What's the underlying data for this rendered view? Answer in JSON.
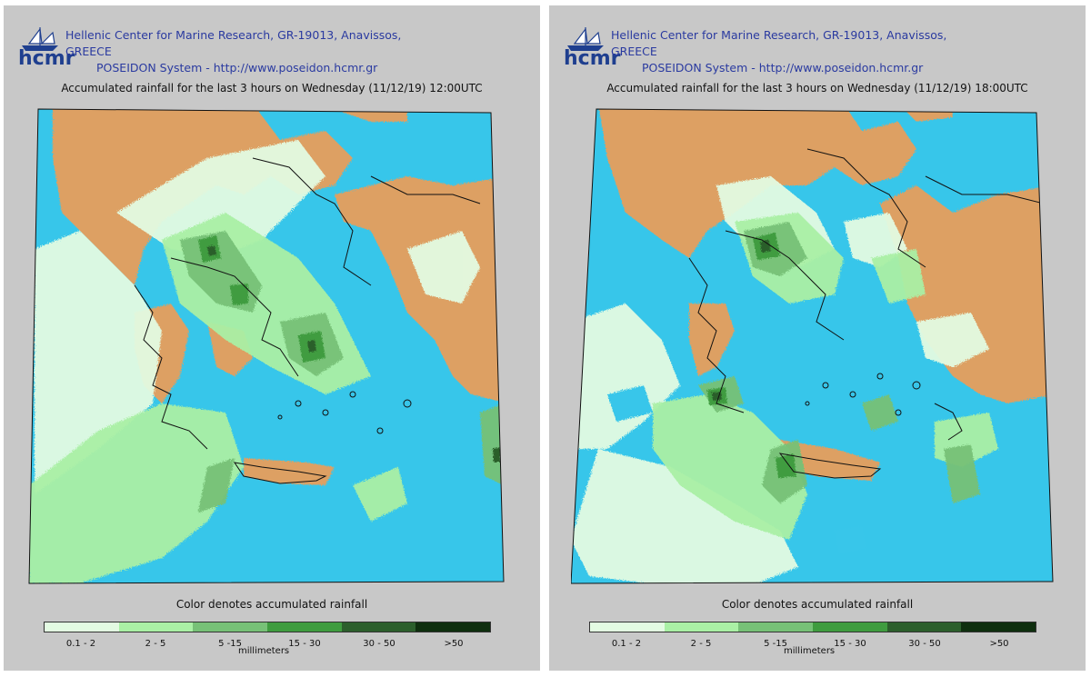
{
  "org": {
    "logo_text": "hcmr",
    "line1": "Hellenic Center for Marine Research, GR-19013, Anavissos, GREECE",
    "line2": "POSEIDON System - http://www.poseidon.hcmr.gr"
  },
  "panels": [
    {
      "title": "Accumulated rainfall for the last 3 hours on Wednesday (11/12/19) 12:00UTC"
    },
    {
      "title": "Accumulated rainfall for the last 3 hours on Wednesday (11/12/19) 18:00UTC"
    }
  ],
  "legend": {
    "title": "Color denotes accumulated rainfall",
    "unit": "millimeters",
    "classes": [
      {
        "label": "0.1 - 2",
        "color": "#e3fbe2"
      },
      {
        "label": "2 - 5",
        "color": "#aaf0a5"
      },
      {
        "label": "5 -15",
        "color": "#77c177"
      },
      {
        "label": "15 - 30",
        "color": "#3f9c3f"
      },
      {
        "label": "30 - 50",
        "color": "#2c5f2c"
      },
      {
        "label": ">50",
        "color": "#0f2f0f"
      }
    ]
  },
  "colors": {
    "sea": "#37c6ea",
    "land": "#dda064",
    "coast": "#111111",
    "header_text": "#2a3aa0",
    "panel_bg": "#c8c8c8"
  }
}
